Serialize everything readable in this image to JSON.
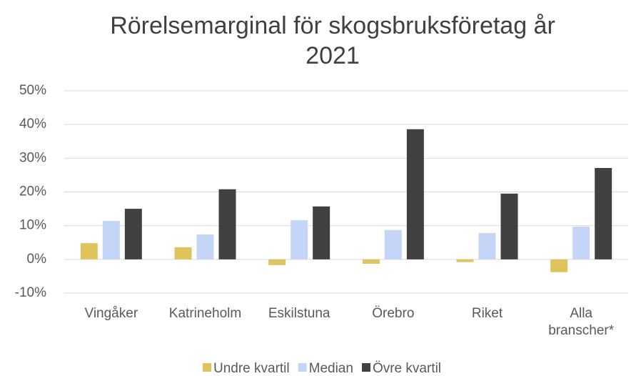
{
  "chart_data": {
    "type": "bar",
    "title": "Rörelsemarginal för skogsbruksföretag år 2021",
    "categories": [
      "Vingåker",
      "Katrineholm",
      "Eskilstuna",
      "Örebro",
      "Riket",
      "Alla branscher*"
    ],
    "series": [
      {
        "name": "Undre kvartil",
        "color": "#dfc35c",
        "values": [
          4.8,
          3.6,
          -1.7,
          -1.3,
          -0.8,
          -3.8
        ]
      },
      {
        "name": "Median",
        "color": "#c5d5f8",
        "values": [
          11.4,
          7.4,
          11.6,
          8.7,
          7.8,
          9.7
        ]
      },
      {
        "name": "Övre kvartil",
        "color": "#404040",
        "values": [
          15.0,
          20.8,
          15.7,
          38.6,
          19.5,
          27.1
        ]
      }
    ],
    "ylim": [
      -10,
      50
    ],
    "yticks": [
      {
        "value": -10,
        "label": "-10%"
      },
      {
        "value": 0,
        "label": "0%"
      },
      {
        "value": 10,
        "label": "10%"
      },
      {
        "value": 20,
        "label": "20%"
      },
      {
        "value": 30,
        "label": "30%"
      },
      {
        "value": 40,
        "label": "40%"
      },
      {
        "value": 50,
        "label": "50%"
      }
    ],
    "grid": true,
    "legend": "bottom"
  }
}
